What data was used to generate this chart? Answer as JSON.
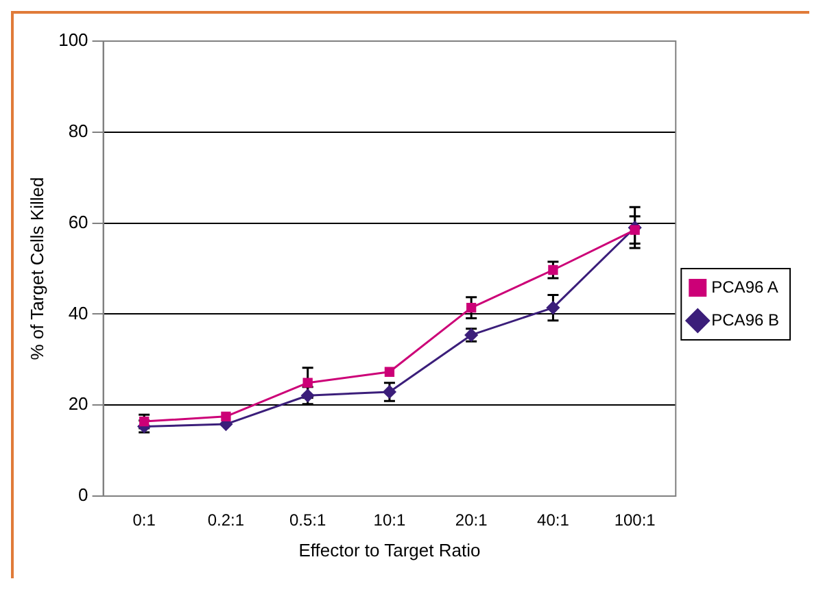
{
  "chart_data": {
    "type": "line",
    "xlabel": "Effector to Target Ratio",
    "ylabel": "% of Target Cells Killed",
    "categories": [
      "0:1",
      "0.2:1",
      "0.5:1",
      "10:1",
      "20:1",
      "40:1",
      "100:1"
    ],
    "series": [
      {
        "name": "PCA96 A",
        "color": "#cc0077",
        "marker": "square",
        "values": [
          16.4,
          17.5,
          24.9,
          27.3,
          41.4,
          49.7,
          58.5
        ],
        "errors": [
          1.5,
          null,
          3.3,
          null,
          2.3,
          1.8,
          3
        ]
      },
      {
        "name": "PCA96 B",
        "color": "#3b1e7a",
        "marker": "diamond",
        "values": [
          15.3,
          15.8,
          22.1,
          22.9,
          35.4,
          41.4,
          59
        ],
        "errors": [
          1.3,
          null,
          1.9,
          2,
          1.4,
          2.8,
          4.5
        ]
      }
    ],
    "ylim": [
      0,
      100
    ],
    "yticks": [
      0,
      20,
      40,
      60,
      80,
      100
    ],
    "grid": "y",
    "legend": "right"
  }
}
